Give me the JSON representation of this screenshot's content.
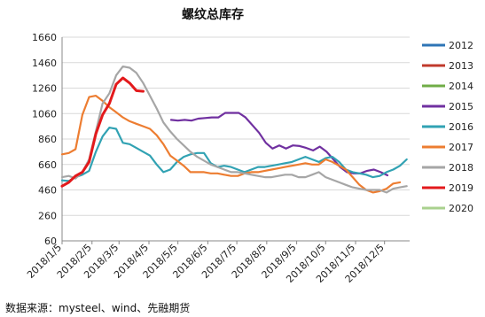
{
  "chart_data": {
    "type": "line",
    "title": "螺纹总库存",
    "source": "数据来源：mysteel、wind、先融期货",
    "ylim": [
      60,
      1660
    ],
    "yticks": [
      60,
      260,
      460,
      660,
      860,
      1060,
      1260,
      1460,
      1660
    ],
    "x_dates": [
      "2018/1/5",
      "2018/2/5",
      "2018/3/5",
      "2018/4/5",
      "2018/5/5",
      "2018/6/5",
      "2018/7/5",
      "2018/8/5",
      "2018/9/5",
      "2018/10/5",
      "2018/11/5",
      "2018/12/5"
    ],
    "xlim": [
      "2018/1/5",
      "2018/12/31"
    ],
    "grid": true,
    "legend_position": "right",
    "series": [
      {
        "name": "2012",
        "color": "#2e75b6",
        "x": [],
        "y": []
      },
      {
        "name": "2013",
        "color": "#c0392b",
        "x": [],
        "y": []
      },
      {
        "name": "2014",
        "color": "#70ad47",
        "x": [],
        "y": []
      },
      {
        "name": "2015",
        "color": "#7030a0",
        "x": [
          "2018/4/28",
          "2018/5/5",
          "2018/5/12",
          "2018/5/19",
          "2018/5/26",
          "2018/6/2",
          "2018/6/9",
          "2018/6/16",
          "2018/6/23",
          "2018/6/30",
          "2018/7/7",
          "2018/7/14",
          "2018/7/21",
          "2018/7/28",
          "2018/8/4",
          "2018/8/11",
          "2018/8/18",
          "2018/8/25",
          "2018/9/1",
          "2018/9/8",
          "2018/9/15",
          "2018/9/22",
          "2018/9/29",
          "2018/10/6",
          "2018/10/13",
          "2018/10/20",
          "2018/10/27",
          "2018/11/3",
          "2018/11/10",
          "2018/11/17",
          "2018/11/24",
          "2018/12/1",
          "2018/12/8"
        ],
        "y": [
          1010,
          1005,
          1010,
          1005,
          1020,
          1025,
          1030,
          1030,
          1065,
          1065,
          1065,
          1030,
          970,
          910,
          830,
          785,
          810,
          785,
          810,
          805,
          790,
          770,
          800,
          760,
          700,
          640,
          600,
          590,
          590,
          610,
          620,
          600,
          575
        ]
      },
      {
        "name": "2016",
        "color": "#31a2b3",
        "x": [
          "2018/1/5",
          "2018/1/12",
          "2018/1/19",
          "2018/1/26",
          "2018/2/2",
          "2018/2/9",
          "2018/2/16",
          "2018/2/23",
          "2018/3/2",
          "2018/3/9",
          "2018/3/16",
          "2018/3/23",
          "2018/3/30",
          "2018/4/6",
          "2018/4/13",
          "2018/4/20",
          "2018/4/27",
          "2018/5/4",
          "2018/5/11",
          "2018/5/18",
          "2018/5/25",
          "2018/6/1",
          "2018/6/8",
          "2018/6/15",
          "2018/6/22",
          "2018/6/29",
          "2018/7/6",
          "2018/7/13",
          "2018/7/20",
          "2018/7/27",
          "2018/8/3",
          "2018/8/10",
          "2018/8/17",
          "2018/8/24",
          "2018/8/31",
          "2018/9/7",
          "2018/9/14",
          "2018/9/21",
          "2018/9/28",
          "2018/10/5",
          "2018/10/12",
          "2018/10/19",
          "2018/10/26",
          "2018/11/2",
          "2018/11/9",
          "2018/11/16",
          "2018/11/23",
          "2018/11/30",
          "2018/12/7",
          "2018/12/14",
          "2018/12/21",
          "2018/12/28"
        ],
        "y": [
          535,
          530,
          560,
          580,
          610,
          760,
          880,
          950,
          940,
          830,
          820,
          790,
          760,
          730,
          660,
          600,
          620,
          680,
          720,
          740,
          750,
          750,
          670,
          640,
          650,
          640,
          620,
          600,
          620,
          640,
          640,
          650,
          660,
          670,
          680,
          700,
          720,
          700,
          680,
          710,
          720,
          680,
          620,
          600,
          590,
          580,
          560,
          570,
          600,
          620,
          650,
          700
        ]
      },
      {
        "name": "2017",
        "color": "#ed7d31",
        "x": [
          "2018/1/5",
          "2018/1/12",
          "2018/1/19",
          "2018/1/26",
          "2018/2/2",
          "2018/2/9",
          "2018/2/16",
          "2018/2/23",
          "2018/3/2",
          "2018/3/9",
          "2018/3/16",
          "2018/3/23",
          "2018/3/30",
          "2018/4/6",
          "2018/4/13",
          "2018/4/20",
          "2018/4/27",
          "2018/5/4",
          "2018/5/11",
          "2018/5/18",
          "2018/5/25",
          "2018/6/1",
          "2018/6/8",
          "2018/6/15",
          "2018/6/22",
          "2018/6/29",
          "2018/7/6",
          "2018/7/13",
          "2018/7/20",
          "2018/7/27",
          "2018/8/3",
          "2018/8/10",
          "2018/8/17",
          "2018/8/24",
          "2018/8/31",
          "2018/9/7",
          "2018/9/14",
          "2018/9/21",
          "2018/9/28",
          "2018/10/5",
          "2018/10/12",
          "2018/10/19",
          "2018/10/26",
          "2018/11/2",
          "2018/11/9",
          "2018/11/16",
          "2018/11/23",
          "2018/11/30",
          "2018/12/7",
          "2018/12/14",
          "2018/12/21"
        ],
        "y": [
          740,
          750,
          780,
          1050,
          1190,
          1200,
          1160,
          1110,
          1070,
          1030,
          1000,
          980,
          960,
          940,
          890,
          820,
          730,
          690,
          650,
          600,
          600,
          600,
          590,
          590,
          580,
          570,
          570,
          590,
          600,
          600,
          610,
          620,
          630,
          640,
          650,
          660,
          670,
          660,
          660,
          700,
          680,
          650,
          620,
          560,
          500,
          460,
          440,
          450,
          470,
          510,
          520
        ]
      },
      {
        "name": "2018",
        "color": "#a6a6a6",
        "x": [
          "2018/1/5",
          "2018/1/12",
          "2018/1/19",
          "2018/1/26",
          "2018/2/2",
          "2018/2/9",
          "2018/2/16",
          "2018/2/23",
          "2018/3/2",
          "2018/3/9",
          "2018/3/16",
          "2018/3/23",
          "2018/3/30",
          "2018/4/6",
          "2018/4/13",
          "2018/4/20",
          "2018/4/27",
          "2018/5/4",
          "2018/5/11",
          "2018/5/18",
          "2018/5/25",
          "2018/6/1",
          "2018/6/8",
          "2018/6/15",
          "2018/6/22",
          "2018/6/29",
          "2018/7/6",
          "2018/7/13",
          "2018/7/20",
          "2018/7/27",
          "2018/8/3",
          "2018/8/10",
          "2018/8/17",
          "2018/8/24",
          "2018/8/31",
          "2018/9/7",
          "2018/9/14",
          "2018/9/21",
          "2018/9/28",
          "2018/10/5",
          "2018/10/12",
          "2018/10/19",
          "2018/10/26",
          "2018/11/2",
          "2018/11/9",
          "2018/11/16",
          "2018/11/23",
          "2018/11/30",
          "2018/12/7",
          "2018/12/14",
          "2018/12/21",
          "2018/12/28"
        ],
        "y": [
          560,
          570,
          550,
          600,
          700,
          920,
          1140,
          1220,
          1360,
          1430,
          1420,
          1380,
          1300,
          1200,
          1100,
          990,
          920,
          860,
          810,
          760,
          720,
          690,
          660,
          640,
          620,
          600,
          600,
          590,
          580,
          570,
          560,
          560,
          570,
          580,
          580,
          560,
          560,
          580,
          600,
          560,
          540,
          520,
          500,
          480,
          470,
          460,
          460,
          460,
          440,
          470,
          480,
          490
        ]
      },
      {
        "name": "2019",
        "color": "#e31a1c",
        "x": [
          "2018/1/5",
          "2018/1/12",
          "2018/1/19",
          "2018/1/26",
          "2018/2/2",
          "2018/2/9",
          "2018/2/16",
          "2018/2/23",
          "2018/3/2",
          "2018/3/9",
          "2018/3/16",
          "2018/3/23",
          "2018/3/30"
        ],
        "y": [
          490,
          520,
          570,
          600,
          680,
          900,
          1050,
          1140,
          1290,
          1340,
          1300,
          1240,
          1235
        ]
      },
      {
        "name": "2020",
        "color": "#a9d18e",
        "x": [],
        "y": []
      }
    ]
  }
}
